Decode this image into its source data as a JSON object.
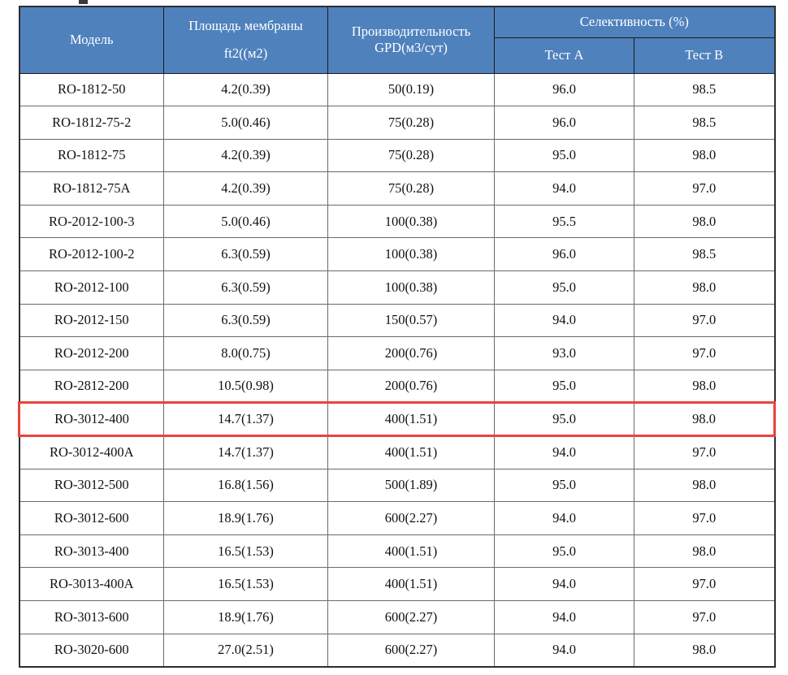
{
  "colors": {
    "header_bg": "#4f81bd",
    "header_text": "#ffffff",
    "grid": "#6a6a6a",
    "outer_border": "#2e2e2e",
    "header_grid": "#1a1a1a",
    "highlight_border": "#e8453b",
    "body_text": "#111111",
    "page_bg": "#ffffff"
  },
  "table": {
    "header": {
      "model": "Модель",
      "area_line1": "Площадь мембраны",
      "area_line2": "ft2((м2)",
      "productivity_line1": "Производительность",
      "productivity_line2": "GPD(м3/сут)",
      "selectivity": "Селективность (%)",
      "test_a": "Тест A",
      "test_b": "Тест B"
    },
    "highlighted_model": "RO-3012-400",
    "columns": [
      "model",
      "area",
      "gpd",
      "test_a",
      "test_b"
    ],
    "rows": [
      {
        "model": "RO-1812-50",
        "area": "4.2(0.39)",
        "gpd": "50(0.19)",
        "test_a": "96.0",
        "test_b": "98.5"
      },
      {
        "model": "RO-1812-75-2",
        "area": "5.0(0.46)",
        "gpd": "75(0.28)",
        "test_a": "96.0",
        "test_b": "98.5"
      },
      {
        "model": "RO-1812-75",
        "area": "4.2(0.39)",
        "gpd": "75(0.28)",
        "test_a": "95.0",
        "test_b": "98.0"
      },
      {
        "model": "RO-1812-75A",
        "area": "4.2(0.39)",
        "gpd": "75(0.28)",
        "test_a": "94.0",
        "test_b": "97.0"
      },
      {
        "model": "RO-2012-100-3",
        "area": "5.0(0.46)",
        "gpd": "100(0.38)",
        "test_a": "95.5",
        "test_b": "98.0"
      },
      {
        "model": "RO-2012-100-2",
        "area": "6.3(0.59)",
        "gpd": "100(0.38)",
        "test_a": "96.0",
        "test_b": "98.5"
      },
      {
        "model": "RO-2012-100",
        "area": "6.3(0.59)",
        "gpd": "100(0.38)",
        "test_a": "95.0",
        "test_b": "98.0"
      },
      {
        "model": "RO-2012-150",
        "area": "6.3(0.59)",
        "gpd": "150(0.57)",
        "test_a": "94.0",
        "test_b": "97.0"
      },
      {
        "model": "RO-2012-200",
        "area": "8.0(0.75)",
        "gpd": "200(0.76)",
        "test_a": "93.0",
        "test_b": "97.0"
      },
      {
        "model": "RO-2812-200",
        "area": "10.5(0.98)",
        "gpd": "200(0.76)",
        "test_a": "95.0",
        "test_b": "98.0"
      },
      {
        "model": "RO-3012-400",
        "area": "14.7(1.37)",
        "gpd": "400(1.51)",
        "test_a": "95.0",
        "test_b": "98.0"
      },
      {
        "model": "RO-3012-400A",
        "area": "14.7(1.37)",
        "gpd": "400(1.51)",
        "test_a": "94.0",
        "test_b": "97.0"
      },
      {
        "model": "RO-3012-500",
        "area": "16.8(1.56)",
        "gpd": "500(1.89)",
        "test_a": "95.0",
        "test_b": "98.0"
      },
      {
        "model": "RO-3012-600",
        "area": "18.9(1.76)",
        "gpd": "600(2.27)",
        "test_a": "94.0",
        "test_b": "97.0"
      },
      {
        "model": "RO-3013-400",
        "area": "16.5(1.53)",
        "gpd": "400(1.51)",
        "test_a": "95.0",
        "test_b": "98.0"
      },
      {
        "model": "RO-3013-400A",
        "area": "16.5(1.53)",
        "gpd": "400(1.51)",
        "test_a": "94.0",
        "test_b": "97.0"
      },
      {
        "model": "RO-3013-600",
        "area": "18.9(1.76)",
        "gpd": "600(2.27)",
        "test_a": "94.0",
        "test_b": "97.0"
      },
      {
        "model": "RO-3020-600",
        "area": "27.0(2.51)",
        "gpd": "600(2.27)",
        "test_a": "94.0",
        "test_b": "98.0"
      }
    ]
  }
}
